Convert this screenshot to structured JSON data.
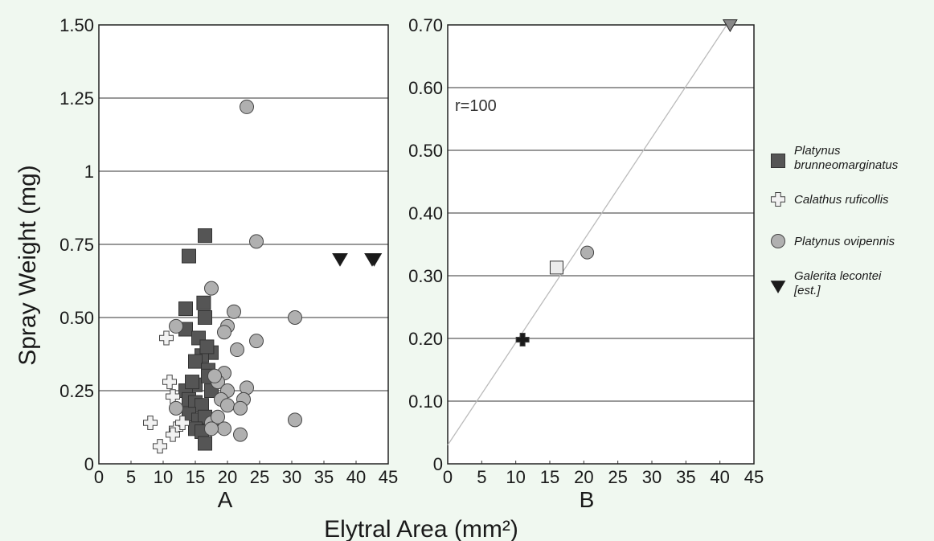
{
  "chart_data": [
    {
      "panel": "A",
      "type": "scatter",
      "ylabel": "Spray Weight (mg)",
      "xlim": [
        0,
        45
      ],
      "ylim": [
        0,
        1.5
      ],
      "x_ticks": [
        "0",
        "5",
        "10",
        "15",
        "20",
        "25",
        "30",
        "35",
        "40",
        "45"
      ],
      "y_ticks": [
        "0",
        "0.25",
        "0.50",
        "0.75",
        "1",
        "1.25",
        "1.50"
      ],
      "grid": "horizontal",
      "series": [
        {
          "name": "Platynus brunneomarginatus",
          "marker": "square",
          "color": "#555555",
          "points": [
            [
              16.5,
              0.78
            ],
            [
              14,
              0.71
            ],
            [
              13.5,
              0.53
            ],
            [
              16.3,
              0.55
            ],
            [
              16.5,
              0.5
            ],
            [
              13.5,
              0.46
            ],
            [
              15.5,
              0.43
            ],
            [
              17.5,
              0.38
            ],
            [
              16,
              0.37
            ],
            [
              15,
              0.35
            ],
            [
              16.8,
              0.4
            ],
            [
              17,
              0.32
            ],
            [
              15,
              0.27
            ],
            [
              13.5,
              0.25
            ],
            [
              17.5,
              0.25
            ],
            [
              14,
              0.22
            ],
            [
              15,
              0.21
            ],
            [
              16,
              0.2
            ],
            [
              14,
              0.17
            ],
            [
              15.5,
              0.15
            ],
            [
              16.5,
              0.16
            ],
            [
              15,
              0.12
            ],
            [
              16,
              0.11
            ],
            [
              16.5,
              0.07
            ],
            [
              17,
              0.3
            ],
            [
              14.5,
              0.28
            ]
          ]
        },
        {
          "name": "Calathus ruficollis",
          "marker": "cross",
          "color": "#f2f2f2",
          "points": [
            [
              10.5,
              0.43
            ],
            [
              11,
              0.28
            ],
            [
              11.5,
              0.23
            ],
            [
              8,
              0.14
            ],
            [
              9.5,
              0.06
            ],
            [
              12,
              0.12
            ],
            [
              13,
              0.14
            ],
            [
              11.5,
              0.1
            ]
          ]
        },
        {
          "name": "Platynus ovipennis",
          "marker": "circle",
          "color": "#b0b0b0",
          "points": [
            [
              23,
              1.22
            ],
            [
              24.5,
              0.76
            ],
            [
              17.5,
              0.6
            ],
            [
              21,
              0.52
            ],
            [
              30.5,
              0.5
            ],
            [
              12,
              0.47
            ],
            [
              20,
              0.47
            ],
            [
              19.5,
              0.45
            ],
            [
              24.5,
              0.42
            ],
            [
              21.5,
              0.39
            ],
            [
              19.5,
              0.31
            ],
            [
              18.5,
              0.28
            ],
            [
              18,
              0.3
            ],
            [
              20,
              0.25
            ],
            [
              23,
              0.26
            ],
            [
              19,
              0.22
            ],
            [
              22.5,
              0.22
            ],
            [
              12,
              0.19
            ],
            [
              20,
              0.2
            ],
            [
              22,
              0.19
            ],
            [
              17.5,
              0.14
            ],
            [
              18.5,
              0.16
            ],
            [
              19.5,
              0.12
            ],
            [
              30.5,
              0.15
            ],
            [
              22,
              0.1
            ],
            [
              17.5,
              0.12
            ]
          ]
        },
        {
          "name": "Galerita lecontei [est.]",
          "marker": "triangle-down",
          "color": "#1a1a1a",
          "points": [
            [
              37.5,
              0.7
            ],
            [
              42.5,
              0.7
            ],
            [
              42.8,
              0.7
            ]
          ]
        }
      ]
    },
    {
      "panel": "B",
      "type": "scatter",
      "xlim": [
        0,
        45
      ],
      "ylim": [
        0,
        0.7
      ],
      "x_ticks": [
        "0",
        "5",
        "10",
        "15",
        "20",
        "25",
        "30",
        "35",
        "40",
        "45"
      ],
      "y_ticks": [
        "0",
        "0.10",
        "0.20",
        "0.30",
        "0.40",
        "0.50",
        "0.60",
        "0.70"
      ],
      "grid": "horizontal",
      "annotation": "r=100",
      "trendline": [
        [
          0,
          0.03
        ],
        [
          41,
          0.7
        ]
      ],
      "points": [
        {
          "series": "Platynus brunneomarginatus",
          "marker": "square",
          "color": "#ececec",
          "x": 16,
          "y": 0.313
        },
        {
          "series": "Calathus ruficollis",
          "marker": "cross",
          "color": "#1a1a1a",
          "x": 11,
          "y": 0.198
        },
        {
          "series": "Platynus ovipennis",
          "marker": "circle",
          "color": "#b0b0b0",
          "x": 20.5,
          "y": 0.337
        },
        {
          "series": "Galerita lecontei [est.]",
          "marker": "triangle-down",
          "color": "#888888",
          "x": 41.5,
          "y": 0.7
        }
      ]
    }
  ],
  "xlabel": "Elytral Area (mm²)",
  "legend": [
    {
      "lines": [
        "Platynus",
        "brunneomarginatus"
      ],
      "marker": "square",
      "color": "#555555"
    },
    {
      "lines": [
        "Calathus ruficollis"
      ],
      "marker": "cross",
      "color": "#f2f2f2"
    },
    {
      "lines": [
        "Platynus ovipennis"
      ],
      "marker": "circle",
      "color": "#b0b0b0"
    },
    {
      "lines": [
        "Galerita lecontei",
        "[est.]"
      ],
      "marker": "triangle-down",
      "color": "#1a1a1a"
    }
  ]
}
